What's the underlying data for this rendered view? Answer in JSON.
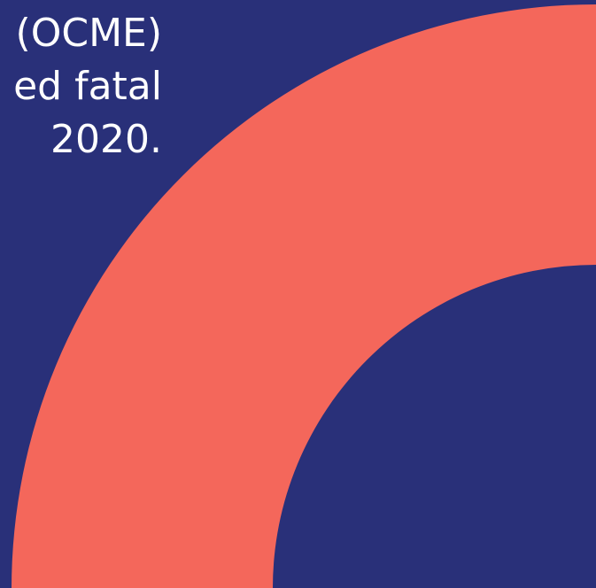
{
  "background_color": "#293079",
  "accent_color": "#f4675b",
  "text_lines": [
    "(OCME)",
    "ed fatal",
    "2020."
  ]
}
